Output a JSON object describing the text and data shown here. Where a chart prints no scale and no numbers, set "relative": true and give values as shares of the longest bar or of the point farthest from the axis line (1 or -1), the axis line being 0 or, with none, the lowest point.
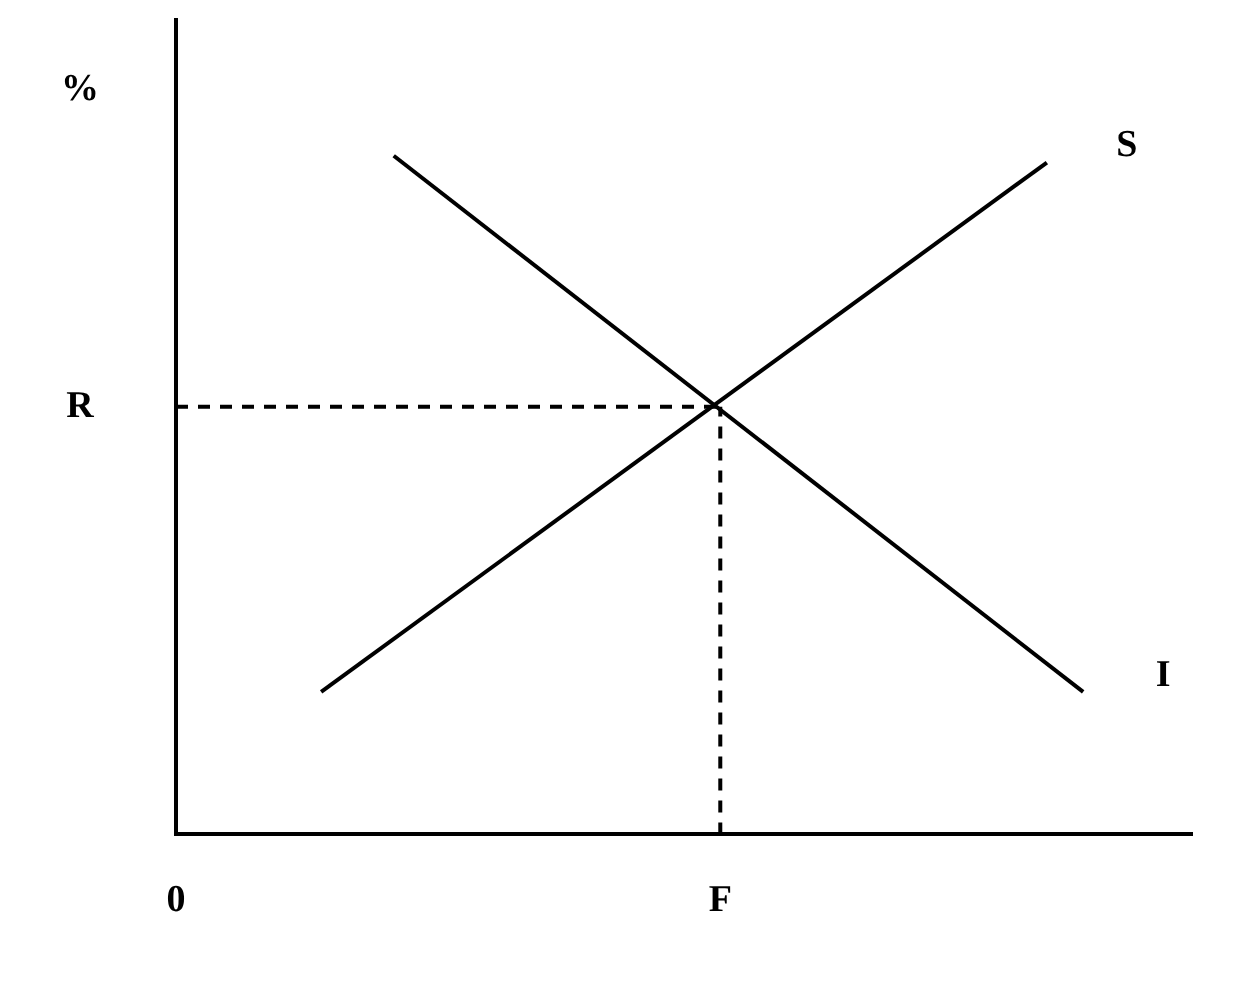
{
  "chart_data": {
    "type": "line",
    "relative": true,
    "ylabel": "%",
    "categories": [
      "0",
      null,
      null,
      null,
      null,
      null,
      null,
      null,
      null,
      null,
      null,
      null,
      null,
      null,
      null,
      "F",
      null,
      null,
      null,
      null,
      null,
      null,
      null,
      null,
      null,
      null,
      null,
      null,
      null
    ],
    "series": [
      {
        "name": "S",
        "color": "#000000",
        "values": [
          null,
          null,
          null,
          null,
          0.21,
          null,
          null,
          null,
          null,
          null,
          null,
          null,
          null,
          null,
          null,
          null,
          null,
          null,
          null,
          null,
          null,
          null,
          null,
          null,
          0.99,
          null,
          null,
          null,
          null
        ]
      },
      {
        "name": "I",
        "color": "#000000",
        "values": [
          null,
          null,
          null,
          null,
          null,
          null,
          1.0,
          null,
          null,
          null,
          null,
          null,
          null,
          null,
          null,
          null,
          null,
          null,
          null,
          null,
          null,
          null,
          null,
          null,
          null,
          0.21,
          null,
          null,
          null
        ]
      }
    ],
    "ref_lines": [
      {
        "axis": "y",
        "value": 0.63,
        "label": "R",
        "color": "#000000",
        "line_style": "dashed"
      },
      {
        "axis": "x",
        "value": "F",
        "color": "#000000",
        "line_style": "dashed"
      }
    ],
    "grid": false,
    "legend": false,
    "marker": "none",
    "line_style": "solid"
  }
}
